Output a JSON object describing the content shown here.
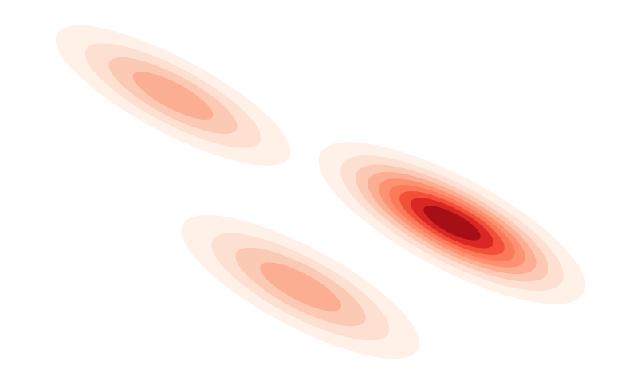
{
  "chart_data": {
    "type": "contour",
    "title": "",
    "xlabel": "",
    "ylabel": "",
    "axes_visible": false,
    "grid": false,
    "colormap": "Reds",
    "fill_colors": [
      "#fff0e8",
      "#fee0d2",
      "#fcc9b4",
      "#fcae92",
      "#fc9272",
      "#fb7a5a",
      "#f44f39",
      "#d92723",
      "#a50f15"
    ],
    "components": [
      {
        "name": "",
        "center": [
          -1.9,
          1.2
        ],
        "relative_peak": 0.48,
        "orientation_deg": -28
      },
      {
        "name": "",
        "center": [
          -0.3,
          -1.2
        ],
        "relative_peak": 0.48,
        "orientation_deg": -28
      },
      {
        "name": "",
        "center": [
          1.6,
          -0.4
        ],
        "relative_peak": 1.0,
        "orientation_deg": -28
      }
    ]
  }
}
